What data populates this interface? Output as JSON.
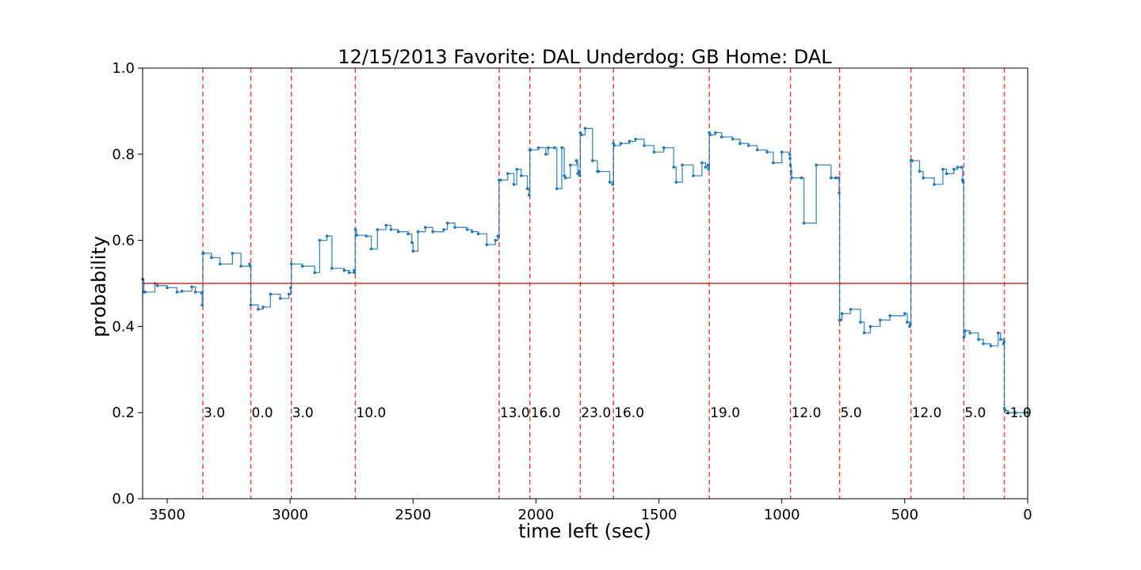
{
  "chart_data": {
    "type": "line",
    "title": "12/15/2013 Favorite: DAL Underdog: GB Home: DAL",
    "xlabel": "time left (sec)",
    "ylabel": "probability",
    "xlim": [
      3600,
      0
    ],
    "ylim": [
      0.0,
      1.0
    ],
    "x_ticks": [
      3500,
      3000,
      2500,
      2000,
      1500,
      1000,
      500,
      0
    ],
    "y_ticks": [
      0.0,
      0.2,
      0.4,
      0.6,
      0.8,
      1.0
    ],
    "x_tick_labels": [
      "3500",
      "3000",
      "2500",
      "2000",
      "1500",
      "1000",
      "500",
      "0"
    ],
    "y_tick_labels": [
      "0.0",
      "0.2",
      "0.4",
      "0.6",
      "0.8",
      "1.0"
    ],
    "reference_line": {
      "y": 0.5,
      "color": "#d62728"
    },
    "colors": {
      "series": "#1f77b4",
      "event_line": "#e8474a",
      "reference": "#d62728"
    },
    "events": [
      {
        "x": 3355,
        "label": "3.0"
      },
      {
        "x": 3160,
        "label": "0.0"
      },
      {
        "x": 2995,
        "label": "3.0"
      },
      {
        "x": 2735,
        "label": "10.0"
      },
      {
        "x": 2150,
        "label": "13.0"
      },
      {
        "x": 2025,
        "label": "16.0"
      },
      {
        "x": 1820,
        "label": "23.0"
      },
      {
        "x": 1685,
        "label": "16.0"
      },
      {
        "x": 1295,
        "label": "19.0"
      },
      {
        "x": 965,
        "label": "12.0"
      },
      {
        "x": 765,
        "label": "5.0"
      },
      {
        "x": 475,
        "label": "12.0"
      },
      {
        "x": 260,
        "label": "5.0"
      },
      {
        "x": 95,
        "label": "-1.0"
      }
    ],
    "series": [
      {
        "x": [
          3600,
          3595,
          3590,
          3550,
          3540,
          3500,
          3460,
          3440,
          3400,
          3385,
          3360,
          3358,
          3355,
          3352,
          3320,
          3285,
          3235,
          3200,
          3165,
          3162,
          3160,
          3130,
          3110,
          3080,
          3040,
          3005,
          2998,
          2995,
          2950,
          2900,
          2880,
          2850,
          2830,
          2780,
          2760,
          2740,
          2738,
          2735,
          2730,
          2690,
          2670,
          2645,
          2610,
          2590,
          2560,
          2520,
          2505,
          2500,
          2480,
          2450,
          2420,
          2375,
          2360,
          2330,
          2280,
          2260,
          2235,
          2200,
          2165,
          2155,
          2152,
          2150,
          2145,
          2115,
          2090,
          2078,
          2060,
          2035,
          2028,
          2025,
          2022,
          1990,
          1960,
          1950,
          1925,
          1915,
          1895,
          1885,
          1880,
          1860,
          1835,
          1830,
          1825,
          1822,
          1820,
          1815,
          1800,
          1770,
          1750,
          1745,
          1700,
          1688,
          1685,
          1682,
          1655,
          1620,
          1595,
          1560,
          1520,
          1480,
          1440,
          1430,
          1405,
          1360,
          1325,
          1310,
          1300,
          1298,
          1295,
          1292,
          1270,
          1245,
          1200,
          1170,
          1135,
          1100,
          1060,
          1035,
          1000,
          968,
          967,
          965,
          962,
          960,
          920,
          910,
          860,
          800,
          780,
          768,
          767,
          765,
          762,
          755,
          720,
          680,
          665,
          640,
          600,
          560,
          500,
          490,
          480,
          477,
          475,
          470,
          440,
          425,
          380,
          345,
          330,
          300,
          285,
          270,
          265,
          262,
          260,
          255,
          235,
          200,
          180,
          150,
          120,
          110,
          98,
          96,
          95,
          92,
          80,
          50,
          10,
          0
        ],
        "y": [
          0.51,
          0.48,
          0.48,
          0.5,
          0.495,
          0.49,
          0.48,
          0.482,
          0.492,
          0.48,
          0.478,
          0.45,
          0.57,
          0.57,
          0.56,
          0.545,
          0.57,
          0.54,
          0.545,
          0.54,
          0.45,
          0.44,
          0.445,
          0.475,
          0.465,
          0.475,
          0.49,
          0.545,
          0.54,
          0.525,
          0.6,
          0.61,
          0.535,
          0.53,
          0.525,
          0.53,
          0.525,
          0.625,
          0.612,
          0.61,
          0.58,
          0.625,
          0.635,
          0.625,
          0.62,
          0.615,
          0.595,
          0.575,
          0.62,
          0.63,
          0.62,
          0.625,
          0.64,
          0.63,
          0.625,
          0.62,
          0.615,
          0.59,
          0.6,
          0.61,
          0.61,
          0.74,
          0.74,
          0.755,
          0.73,
          0.765,
          0.75,
          0.72,
          0.705,
          0.81,
          0.81,
          0.815,
          0.8,
          0.815,
          0.815,
          0.72,
          0.815,
          0.75,
          0.745,
          0.775,
          0.785,
          0.755,
          0.76,
          0.75,
          0.85,
          0.845,
          0.86,
          0.785,
          0.76,
          0.76,
          0.735,
          0.73,
          0.825,
          0.82,
          0.825,
          0.83,
          0.835,
          0.82,
          0.805,
          0.815,
          0.77,
          0.735,
          0.775,
          0.75,
          0.78,
          0.77,
          0.775,
          0.765,
          0.85,
          0.845,
          0.85,
          0.84,
          0.835,
          0.825,
          0.82,
          0.81,
          0.805,
          0.78,
          0.805,
          0.8,
          0.79,
          0.775,
          0.76,
          0.745,
          0.745,
          0.64,
          0.775,
          0.745,
          0.745,
          0.745,
          0.71,
          0.415,
          0.415,
          0.43,
          0.44,
          0.41,
          0.385,
          0.4,
          0.415,
          0.425,
          0.43,
          0.41,
          0.4,
          0.405,
          0.785,
          0.785,
          0.76,
          0.745,
          0.73,
          0.765,
          0.755,
          0.765,
          0.77,
          0.77,
          0.74,
          0.735,
          0.375,
          0.39,
          0.385,
          0.37,
          0.36,
          0.355,
          0.385,
          0.37,
          0.36,
          0.365,
          0.21,
          0.205,
          0.2,
          0.2,
          0.2,
          0.2
        ]
      }
    ]
  }
}
